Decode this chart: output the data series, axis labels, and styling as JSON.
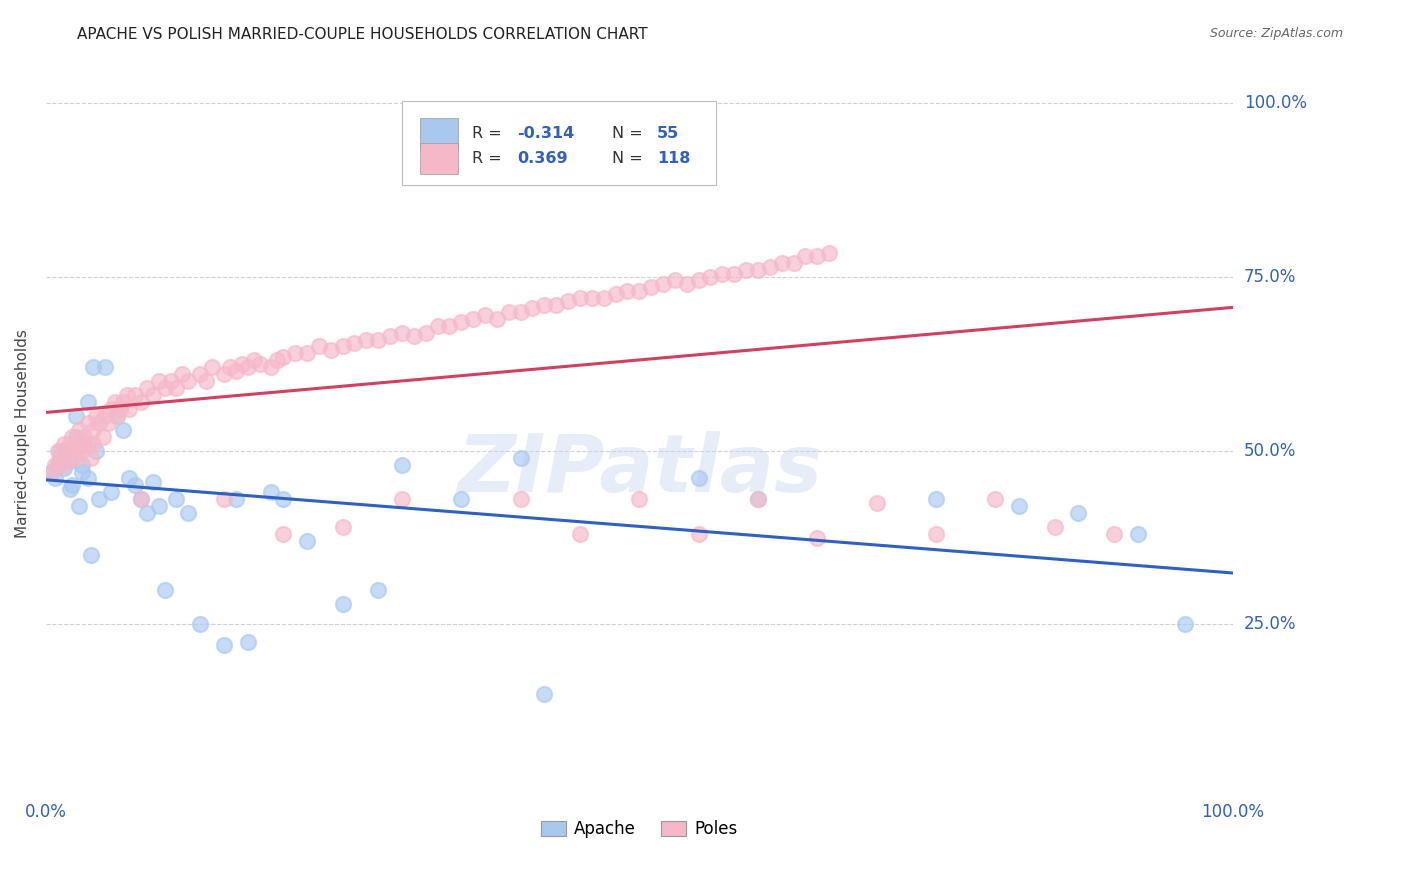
{
  "title": "APACHE VS POLISH MARRIED-COUPLE HOUSEHOLDS CORRELATION CHART",
  "source": "Source: ZipAtlas.com",
  "ylabel": "Married-couple Households",
  "xlim": [
    0.0,
    1.0
  ],
  "ylim": [
    0.0,
    1.05
  ],
  "xtick_positions": [
    0.0,
    1.0
  ],
  "xtick_labels": [
    "0.0%",
    "100.0%"
  ],
  "ytick_positions": [
    0.25,
    0.5,
    0.75,
    1.0
  ],
  "ytick_labels": [
    "25.0%",
    "50.0%",
    "75.0%",
    "100.0%"
  ],
  "apache_color": "#a8c8f0",
  "poles_color": "#f5b8c8",
  "apache_line_color": "#3060c0",
  "poles_line_color": "#d04060",
  "apache_R": -0.314,
  "apache_N": 55,
  "poles_R": 0.369,
  "poles_N": 118,
  "watermark": "ZIPatlas",
  "background_color": "#ffffff",
  "grid_color": "#cccccc",
  "apache_scatter_x": [
    0.005,
    0.008,
    0.01,
    0.012,
    0.015,
    0.015,
    0.018,
    0.02,
    0.02,
    0.022,
    0.025,
    0.025,
    0.028,
    0.03,
    0.03,
    0.032,
    0.035,
    0.035,
    0.038,
    0.04,
    0.042,
    0.045,
    0.05,
    0.055,
    0.06,
    0.065,
    0.07,
    0.075,
    0.08,
    0.085,
    0.09,
    0.095,
    0.1,
    0.11,
    0.12,
    0.13,
    0.15,
    0.16,
    0.17,
    0.19,
    0.2,
    0.22,
    0.25,
    0.28,
    0.3,
    0.35,
    0.4,
    0.42,
    0.55,
    0.6,
    0.75,
    0.82,
    0.87,
    0.92,
    0.96
  ],
  "apache_scatter_y": [
    0.47,
    0.46,
    0.48,
    0.5,
    0.475,
    0.49,
    0.5,
    0.485,
    0.445,
    0.45,
    0.52,
    0.55,
    0.42,
    0.47,
    0.48,
    0.51,
    0.57,
    0.46,
    0.35,
    0.62,
    0.5,
    0.43,
    0.62,
    0.44,
    0.55,
    0.53,
    0.46,
    0.45,
    0.43,
    0.41,
    0.455,
    0.42,
    0.3,
    0.43,
    0.41,
    0.25,
    0.22,
    0.43,
    0.225,
    0.44,
    0.43,
    0.37,
    0.28,
    0.3,
    0.48,
    0.43,
    0.49,
    0.15,
    0.46,
    0.43,
    0.43,
    0.42,
    0.41,
    0.38,
    0.25
  ],
  "poles_scatter_x": [
    0.005,
    0.008,
    0.01,
    0.012,
    0.015,
    0.015,
    0.018,
    0.02,
    0.02,
    0.022,
    0.025,
    0.025,
    0.028,
    0.03,
    0.03,
    0.032,
    0.035,
    0.035,
    0.038,
    0.04,
    0.042,
    0.045,
    0.048,
    0.05,
    0.052,
    0.055,
    0.058,
    0.06,
    0.062,
    0.065,
    0.068,
    0.07,
    0.075,
    0.08,
    0.085,
    0.09,
    0.095,
    0.1,
    0.105,
    0.11,
    0.115,
    0.12,
    0.13,
    0.135,
    0.14,
    0.15,
    0.155,
    0.16,
    0.165,
    0.17,
    0.175,
    0.18,
    0.19,
    0.195,
    0.2,
    0.21,
    0.22,
    0.23,
    0.24,
    0.25,
    0.26,
    0.27,
    0.28,
    0.29,
    0.3,
    0.31,
    0.32,
    0.33,
    0.34,
    0.35,
    0.36,
    0.37,
    0.38,
    0.39,
    0.4,
    0.41,
    0.42,
    0.43,
    0.44,
    0.45,
    0.46,
    0.47,
    0.48,
    0.49,
    0.5,
    0.51,
    0.52,
    0.53,
    0.54,
    0.55,
    0.56,
    0.57,
    0.58,
    0.59,
    0.6,
    0.61,
    0.62,
    0.63,
    0.64,
    0.65,
    0.66,
    0.04,
    0.08,
    0.15,
    0.2,
    0.25,
    0.3,
    0.4,
    0.45,
    0.5,
    0.55,
    0.6,
    0.65,
    0.7,
    0.75,
    0.8,
    0.85,
    0.9
  ],
  "poles_scatter_y": [
    0.47,
    0.48,
    0.5,
    0.49,
    0.48,
    0.51,
    0.5,
    0.49,
    0.51,
    0.52,
    0.5,
    0.49,
    0.53,
    0.51,
    0.5,
    0.52,
    0.54,
    0.51,
    0.49,
    0.53,
    0.55,
    0.54,
    0.52,
    0.55,
    0.54,
    0.56,
    0.57,
    0.55,
    0.56,
    0.57,
    0.58,
    0.56,
    0.58,
    0.57,
    0.59,
    0.58,
    0.6,
    0.59,
    0.6,
    0.59,
    0.61,
    0.6,
    0.61,
    0.6,
    0.62,
    0.61,
    0.62,
    0.615,
    0.625,
    0.62,
    0.63,
    0.625,
    0.62,
    0.63,
    0.635,
    0.64,
    0.64,
    0.65,
    0.645,
    0.65,
    0.655,
    0.66,
    0.66,
    0.665,
    0.67,
    0.665,
    0.67,
    0.68,
    0.68,
    0.685,
    0.69,
    0.695,
    0.69,
    0.7,
    0.7,
    0.705,
    0.71,
    0.71,
    0.715,
    0.72,
    0.72,
    0.72,
    0.725,
    0.73,
    0.73,
    0.735,
    0.74,
    0.745,
    0.74,
    0.745,
    0.75,
    0.755,
    0.755,
    0.76,
    0.76,
    0.765,
    0.77,
    0.77,
    0.78,
    0.78,
    0.785,
    0.51,
    0.43,
    0.43,
    0.38,
    0.39,
    0.43,
    0.43,
    0.38,
    0.43,
    0.38,
    0.43,
    0.375,
    0.425,
    0.38,
    0.43,
    0.39,
    0.38
  ]
}
